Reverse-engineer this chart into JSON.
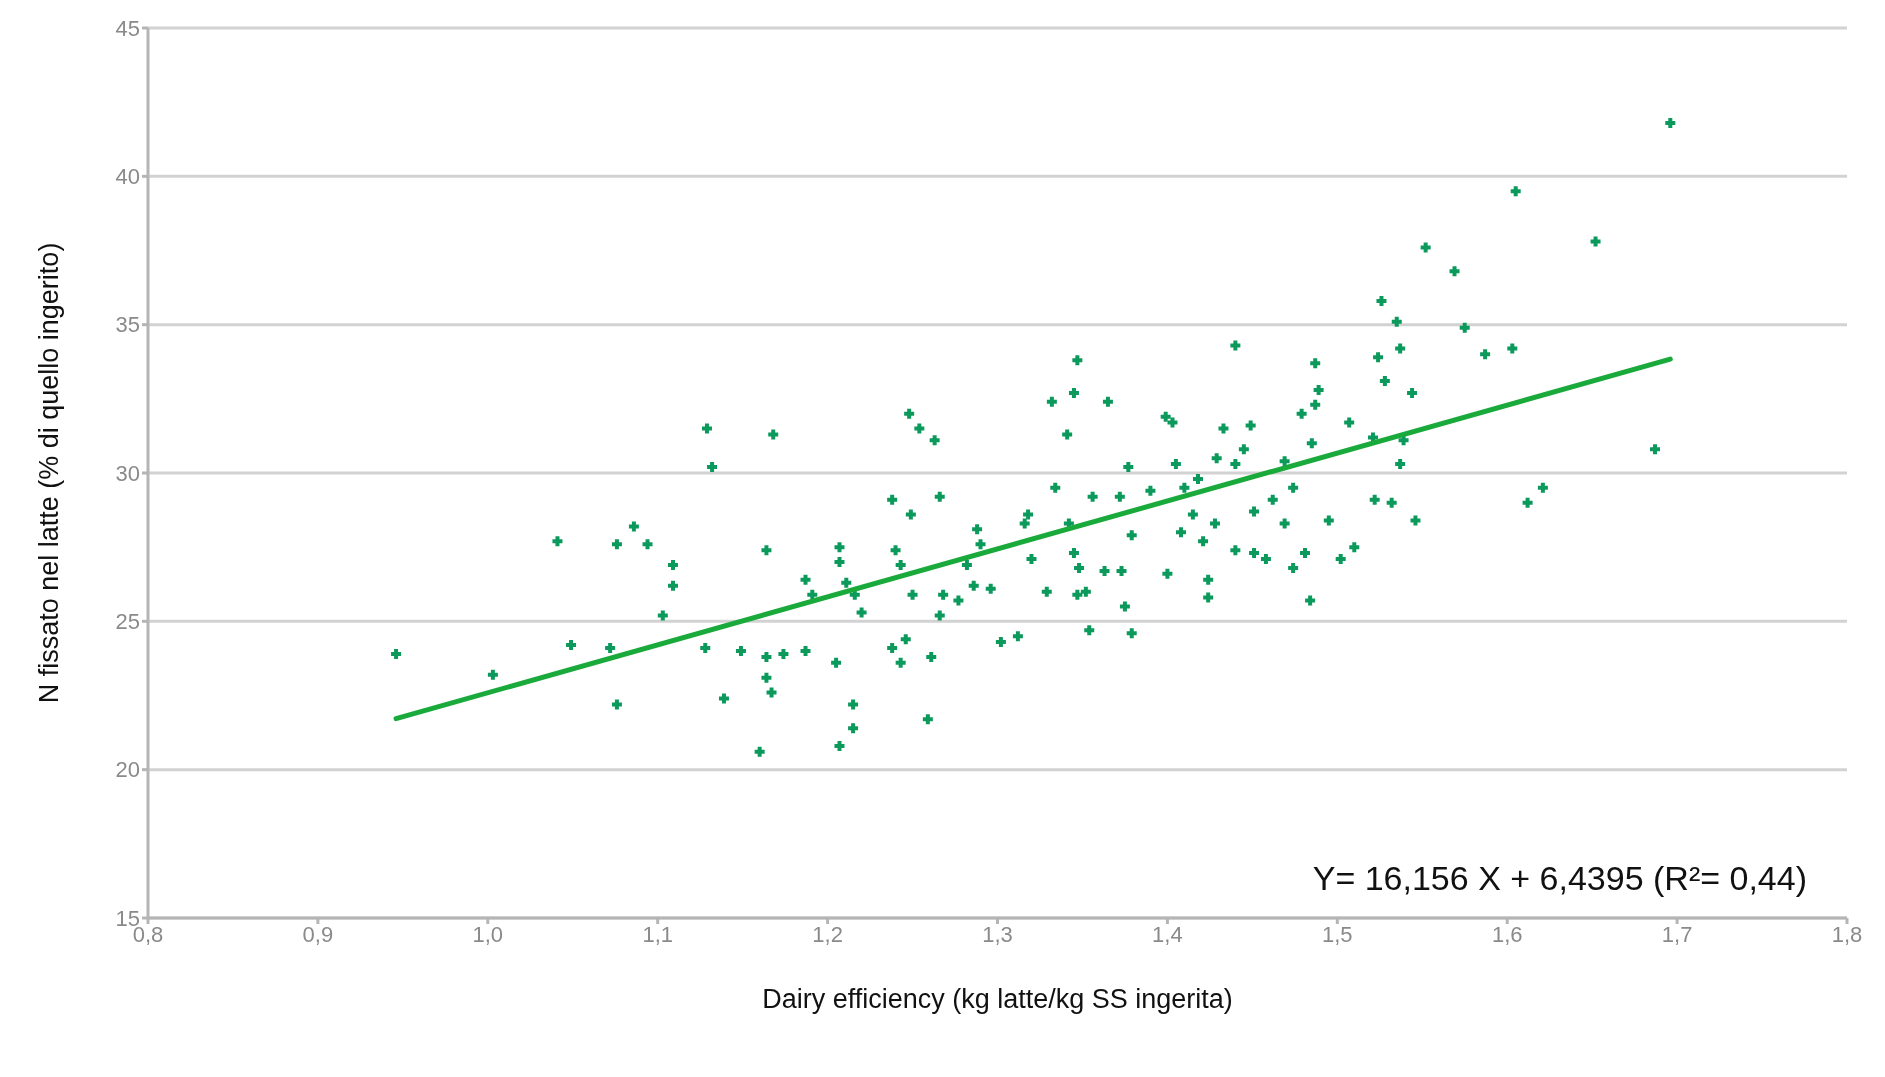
{
  "chart_data": {
    "type": "scatter",
    "xlabel": "Dairy efficiency (kg latte/kg SS ingerita)",
    "ylabel": "N fissato nel latte (% di quello ingerito)",
    "annotations": [
      "Y= 16,156 X + 6,4395 (R²= 0,44)"
    ],
    "xlim": [
      0.8,
      1.8
    ],
    "xticks": [
      {
        "value": 0.8,
        "label": "0,8"
      },
      {
        "value": 0.9,
        "label": "0,9"
      },
      {
        "value": 1.0,
        "label": "1,0"
      },
      {
        "value": 1.1,
        "label": "1,1"
      },
      {
        "value": 1.2,
        "label": "1,2"
      },
      {
        "value": 1.3,
        "label": "1,3"
      },
      {
        "value": 1.4,
        "label": "1,4"
      },
      {
        "value": 1.5,
        "label": "1,5"
      },
      {
        "value": 1.6,
        "label": "1,6"
      },
      {
        "value": 1.7,
        "label": "1,7"
      },
      {
        "value": 1.8,
        "label": "1,8"
      }
    ],
    "ylim": [
      15,
      45
    ],
    "yticks": [
      15,
      20,
      25,
      30,
      35,
      40,
      45
    ],
    "grid": "y",
    "marker": "cross",
    "series": [
      {
        "type": "scatter",
        "color": "#0b9a5c",
        "x": [
          0.946,
          1.003,
          1.041,
          1.049,
          1.072,
          1.076,
          1.076,
          1.086,
          1.094,
          1.109,
          1.109,
          1.103,
          1.129,
          1.132,
          1.128,
          1.139,
          1.149,
          1.16,
          1.164,
          1.168,
          1.164,
          1.164,
          1.167,
          1.174,
          1.187,
          1.187,
          1.191,
          1.205,
          1.207,
          1.207,
          1.207,
          1.215,
          1.215,
          1.211,
          1.216,
          1.22,
          1.238,
          1.24,
          1.243,
          1.238,
          1.243,
          1.246,
          1.249,
          1.248,
          1.254,
          1.263,
          1.25,
          1.259,
          1.261,
          1.266,
          1.268,
          1.266,
          1.277,
          1.282,
          1.286,
          1.288,
          1.29,
          1.296,
          1.302,
          1.312,
          1.316,
          1.318,
          1.32,
          1.329,
          1.332,
          1.334,
          1.341,
          1.345,
          1.347,
          1.342,
          1.345,
          1.348,
          1.347,
          1.352,
          1.354,
          1.356,
          1.365,
          1.363,
          1.372,
          1.373,
          1.375,
          1.377,
          1.379,
          1.379,
          1.39,
          1.399,
          1.403,
          1.4,
          1.405,
          1.408,
          1.41,
          1.415,
          1.418,
          1.421,
          1.424,
          1.424,
          1.428,
          1.429,
          1.433,
          1.44,
          1.44,
          1.44,
          1.445,
          1.449,
          1.451,
          1.451,
          1.458,
          1.462,
          1.469,
          1.469,
          1.474,
          1.474,
          1.479,
          1.481,
          1.484,
          1.485,
          1.487,
          1.489,
          1.487,
          1.495,
          1.502,
          1.507,
          1.51,
          1.521,
          1.522,
          1.524,
          1.526,
          1.528,
          1.532,
          1.535,
          1.537,
          1.537,
          1.539,
          1.544,
          1.546,
          1.552,
          1.569,
          1.575,
          1.587,
          1.605,
          1.603,
          1.612,
          1.621,
          1.652,
          1.687,
          1.696
        ],
        "values": [
          23.9,
          23.2,
          27.7,
          24.2,
          24.1,
          27.6,
          22.2,
          28.2,
          27.6,
          26.9,
          26.2,
          25.2,
          31.5,
          30.2,
          24.1,
          22.4,
          24.0,
          20.6,
          27.4,
          31.3,
          23.8,
          23.1,
          22.6,
          23.9,
          24.0,
          26.4,
          25.9,
          23.6,
          27.5,
          27.0,
          20.8,
          22.2,
          21.4,
          26.3,
          25.9,
          25.3,
          29.1,
          27.4,
          26.9,
          24.1,
          23.6,
          24.4,
          28.6,
          32.0,
          31.5,
          31.1,
          25.9,
          21.7,
          23.8,
          29.2,
          25.9,
          25.2,
          25.7,
          26.9,
          26.2,
          28.1,
          27.6,
          26.1,
          24.3,
          24.5,
          28.3,
          28.6,
          27.1,
          26.0,
          32.4,
          29.5,
          31.3,
          32.7,
          33.8,
          28.3,
          27.3,
          26.8,
          25.9,
          26.0,
          24.7,
          29.2,
          32.4,
          26.7,
          29.2,
          26.7,
          25.5,
          30.2,
          27.9,
          24.6,
          29.4,
          31.9,
          31.7,
          26.6,
          30.3,
          28.0,
          29.5,
          28.6,
          29.8,
          27.7,
          26.4,
          25.8,
          28.3,
          30.5,
          31.5,
          34.3,
          30.3,
          27.4,
          30.8,
          31.6,
          28.7,
          27.3,
          27.1,
          29.1,
          30.4,
          28.3,
          29.5,
          26.8,
          32.0,
          27.3,
          25.7,
          31.0,
          33.7,
          32.8,
          32.3,
          28.4,
          27.1,
          31.7,
          27.5,
          31.2,
          29.1,
          33.9,
          35.8,
          33.1,
          29.0,
          35.1,
          34.2,
          30.3,
          31.1,
          32.7,
          28.4,
          37.6,
          36.8,
          34.9,
          34.0,
          39.5,
          34.2,
          29.0,
          29.5,
          37.8,
          30.8,
          41.8
        ]
      },
      {
        "type": "line",
        "color": "#1aaa3c",
        "marker": "none",
        "x": [
          0.946,
          1.696
        ],
        "values": [
          21.72,
          33.84
        ]
      }
    ]
  }
}
